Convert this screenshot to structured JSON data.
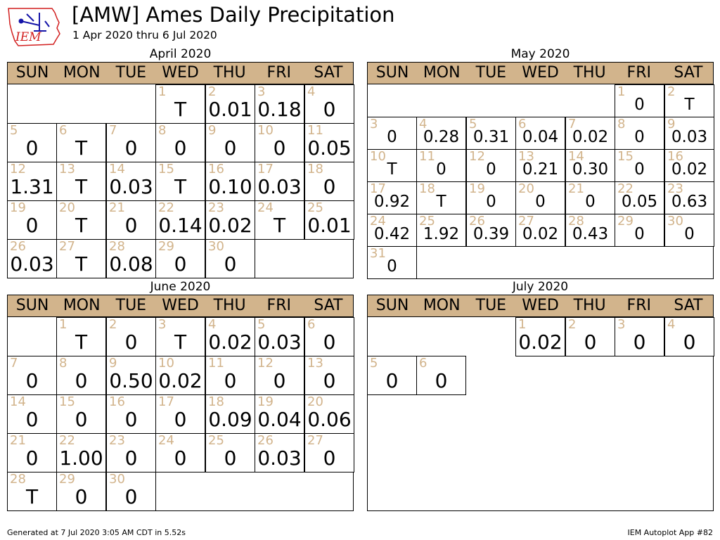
{
  "header": {
    "title": "[AMW] Ames Daily Precipitation",
    "subtitle": "1 Apr 2020 thru 6 Jul 2020",
    "logo_text": "IEM",
    "logo_icon": "iowa-state-outline-icon"
  },
  "weekdays": [
    "SUN",
    "MON",
    "TUE",
    "WED",
    "THU",
    "FRI",
    "SAT"
  ],
  "colors": {
    "header_fill": "#d2b48c",
    "day_number": "#d2b48c",
    "logo_red": "#d21f1f",
    "logo_blue": "#1414a8"
  },
  "chart_data": [
    {
      "type": "table",
      "month": "April 2020",
      "first_weekday": 3,
      "days": [
        "T",
        "0.01",
        "0.18",
        "0",
        "0",
        "T",
        "0",
        "0",
        "0",
        "0",
        "0.05",
        "1.31",
        "T",
        "0.03",
        "T",
        "0.10",
        "0.03",
        "0",
        "0",
        "T",
        "0",
        "0.14",
        "0.02",
        "T",
        "0.01",
        "0.03",
        "T",
        "0.08",
        "0",
        "0"
      ]
    },
    {
      "type": "table",
      "month": "May 2020",
      "first_weekday": 5,
      "days": [
        "0",
        "T",
        "0",
        "0.28",
        "0.31",
        "0.04",
        "0.02",
        "0",
        "0.03",
        "T",
        "0",
        "0",
        "0.21",
        "0.30",
        "0",
        "0.02",
        "0.92",
        "T",
        "0",
        "0",
        "0",
        "0.05",
        "0.63",
        "0.42",
        "1.92",
        "0.39",
        "0.02",
        "0.43",
        "0",
        "0",
        "0"
      ]
    },
    {
      "type": "table",
      "month": "June 2020",
      "first_weekday": 1,
      "days": [
        "T",
        "0",
        "T",
        "0.02",
        "0.03",
        "0",
        "0",
        "0",
        "0.50",
        "0.02",
        "0",
        "0",
        "0",
        "0",
        "0",
        "0",
        "0",
        "0.09",
        "0.04",
        "0.06",
        "0",
        "1.00",
        "0",
        "0",
        "0",
        "0.03",
        "0",
        "T",
        "0",
        "0"
      ]
    },
    {
      "type": "table",
      "month": "July 2020",
      "first_weekday": 3,
      "days": [
        "0.02",
        "0",
        "0",
        "0",
        "0",
        "0"
      ]
    }
  ],
  "footer": {
    "generated": "Generated at 7 Jul 2020 3:05 AM CDT in 5.52s",
    "app": "IEM Autoplot App #82"
  }
}
